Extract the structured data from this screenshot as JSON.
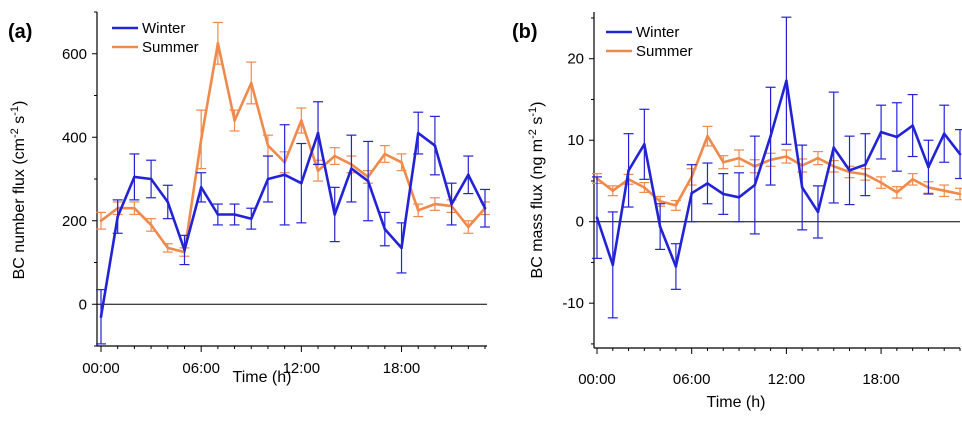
{
  "chart_data": [
    {
      "type": "line",
      "panel_label": "(a)",
      "xlabel": "Time (h)",
      "ylabel": "BC number flux (cm",
      "ylabel_sup1": "-2",
      "ylabel_mid": " s",
      "ylabel_sup2": "-1",
      "ylabel_end": ")",
      "xlim": [
        0,
        23
      ],
      "ylim": [
        -100,
        700
      ],
      "x_ticks": [
        0,
        6,
        12,
        18
      ],
      "x_tick_labels": [
        "00:00",
        "06:00",
        "12:00",
        "18:00"
      ],
      "y_ticks": [
        0,
        200,
        400,
        600
      ],
      "y_tick_labels": [
        "0",
        "200",
        "400",
        "600"
      ],
      "zero_line": true,
      "legend_position": "top-left",
      "series": [
        {
          "name": "Winter",
          "color": "#2323d6",
          "x": [
            0,
            1,
            2,
            3,
            4,
            5,
            6,
            7,
            8,
            9,
            10,
            11,
            12,
            13,
            14,
            15,
            16,
            17,
            18,
            19,
            20,
            21,
            22,
            23
          ],
          "values": [
            -30,
            210,
            305,
            300,
            245,
            130,
            280,
            215,
            215,
            205,
            300,
            310,
            290,
            410,
            215,
            325,
            295,
            180,
            135,
            410,
            380,
            240,
            310,
            230
          ],
          "errors": [
            65,
            40,
            55,
            45,
            40,
            35,
            35,
            25,
            25,
            25,
            55,
            120,
            95,
            75,
            65,
            80,
            95,
            40,
            60,
            50,
            70,
            50,
            45,
            45
          ]
        },
        {
          "name": "Summer",
          "color": "#f08a4b",
          "x": [
            0,
            1,
            2,
            3,
            4,
            5,
            6,
            7,
            8,
            9,
            10,
            11,
            12,
            13,
            14,
            15,
            16,
            17,
            18,
            19,
            20,
            21,
            22,
            23
          ],
          "values": [
            200,
            230,
            230,
            190,
            135,
            125,
            395,
            625,
            440,
            530,
            380,
            340,
            440,
            320,
            355,
            335,
            305,
            360,
            340,
            225,
            240,
            235,
            185,
            230
          ],
          "errors": [
            20,
            15,
            15,
            15,
            10,
            10,
            70,
            50,
            25,
            50,
            25,
            25,
            30,
            25,
            20,
            20,
            15,
            20,
            20,
            15,
            15,
            15,
            15,
            15
          ]
        }
      ]
    },
    {
      "type": "line",
      "panel_label": "(b)",
      "xlabel": "Time (h)",
      "ylabel": "BC mass flux (ng m",
      "ylabel_sup1": "-2",
      "ylabel_mid": " s",
      "ylabel_sup2": "-1",
      "ylabel_end": ")",
      "xlim": [
        0,
        23
      ],
      "ylim": [
        -15.5,
        25
      ],
      "x_ticks": [
        0,
        6,
        12,
        18
      ],
      "x_tick_labels": [
        "00:00",
        "06:00",
        "12:00",
        "18:00"
      ],
      "y_ticks": [
        -10,
        0,
        10,
        20
      ],
      "y_tick_labels": [
        "-10",
        "0",
        "10",
        "20"
      ],
      "zero_line": true,
      "legend_position": "top-left",
      "series": [
        {
          "name": "Winter",
          "color": "#2323d6",
          "x": [
            0,
            1,
            2,
            3,
            4,
            5,
            6,
            7,
            8,
            9,
            10,
            11,
            12,
            13,
            14,
            15,
            16,
            17,
            18,
            19,
            20,
            21,
            22,
            23
          ],
          "values": [
            0.5,
            -5.3,
            6.3,
            9.5,
            -0.6,
            -5.5,
            3.5,
            4.7,
            3.4,
            3.0,
            4.5,
            10.5,
            17.3,
            4.2,
            1.2,
            9.1,
            6.3,
            7.0,
            11.0,
            10.4,
            11.8,
            6.7,
            10.8,
            8.3
          ],
          "errors": [
            5,
            6.5,
            4.5,
            4.3,
            2.8,
            2.8,
            3.5,
            2.5,
            2.5,
            3.0,
            6.0,
            6.0,
            7.8,
            5.2,
            3.2,
            6.8,
            4.2,
            3.8,
            3.3,
            4.2,
            3.8,
            3.3,
            3.5,
            3.0
          ]
        },
        {
          "name": "Summer",
          "color": "#f08a4b",
          "x": [
            0,
            1,
            2,
            3,
            4,
            5,
            6,
            7,
            8,
            9,
            10,
            11,
            12,
            13,
            14,
            15,
            16,
            17,
            18,
            19,
            20,
            21,
            22,
            23
          ],
          "values": [
            5.3,
            3.8,
            5.2,
            4.2,
            2.5,
            2.0,
            5.5,
            10.5,
            7.3,
            7.8,
            6.8,
            7.6,
            8.0,
            6.9,
            7.8,
            6.8,
            6.1,
            5.8,
            4.8,
            3.6,
            5.2,
            4.2,
            3.8,
            3.4
          ],
          "errors": [
            0.6,
            0.6,
            0.6,
            0.6,
            0.6,
            0.6,
            1.0,
            1.2,
            0.8,
            1.0,
            0.8,
            0.8,
            0.8,
            0.8,
            0.8,
            0.7,
            0.7,
            0.7,
            0.7,
            0.7,
            0.7,
            0.7,
            0.7,
            0.7
          ]
        }
      ]
    }
  ]
}
